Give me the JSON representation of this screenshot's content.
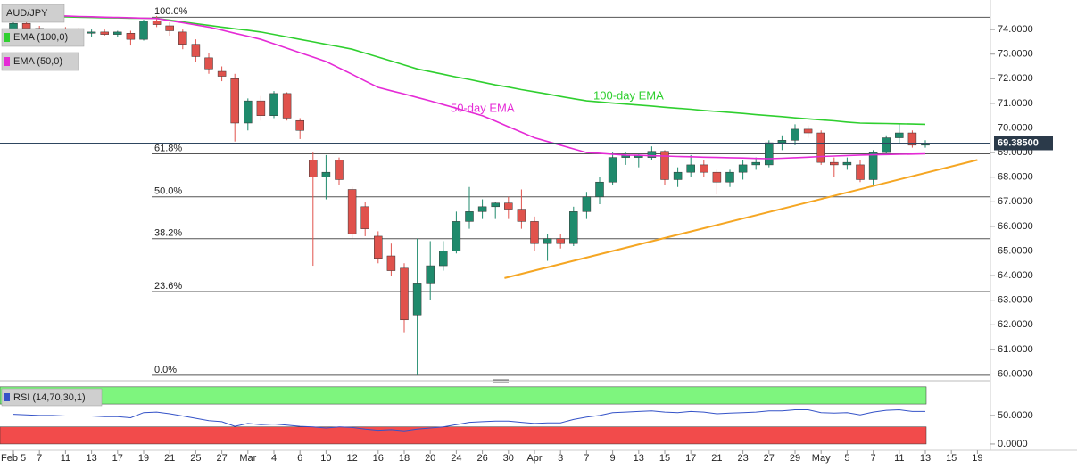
{
  "chart_data": {
    "type": "candlestick",
    "title": "AUD/JPY",
    "categories": [
      "Feb 5",
      null,
      "7",
      null,
      "11",
      null,
      "13",
      null,
      "17",
      null,
      "19",
      null,
      "21",
      null,
      "25",
      null,
      "27",
      null,
      "Mar",
      null,
      "4",
      null,
      "6",
      null,
      "10",
      null,
      "12",
      null,
      "16",
      null,
      "18",
      null,
      "20",
      null,
      "24",
      null,
      "26",
      null,
      "30",
      null,
      "Apr",
      null,
      "3",
      null,
      "7",
      null,
      "9",
      null,
      "13",
      null,
      "15",
      null,
      "17",
      null,
      "21",
      null,
      "23",
      null,
      "27",
      null,
      "29",
      null,
      "May",
      null,
      "5",
      null,
      "7",
      null,
      "11",
      null,
      "13",
      null,
      "15",
      null,
      "19"
    ],
    "open": [
      73.95,
      74.25,
      74.05,
      73.85,
      73.95,
      73.9,
      73.85,
      73.9,
      73.8,
      73.85,
      73.6,
      74.35,
      74.15,
      73.9,
      73.4,
      72.85,
      72.3,
      72.0,
      70.2,
      71.1,
      70.5,
      71.4,
      70.3,
      68.7,
      68.0,
      68.7,
      67.5,
      66.8,
      65.6,
      64.8,
      64.3,
      62.4,
      63.7,
      64.4,
      65.0,
      66.2,
      66.6,
      66.8,
      66.95,
      66.7,
      66.2,
      65.3,
      65.5,
      65.3,
      66.6,
      67.2,
      67.8,
      68.8,
      68.8,
      68.8,
      69.05,
      67.9,
      68.2,
      68.5,
      68.2,
      67.8,
      68.2,
      68.5,
      68.5,
      69.4,
      69.5,
      69.95,
      69.8,
      68.6,
      68.5,
      68.5,
      67.9,
      69.0,
      69.6,
      69.8,
      69.3,
      null,
      null,
      null,
      null
    ],
    "high": [
      74.35,
      74.45,
      74.15,
      74.0,
      74.1,
      74.05,
      74.0,
      74.0,
      73.95,
      73.95,
      74.4,
      74.55,
      74.3,
      74.0,
      73.6,
      73.05,
      72.5,
      72.2,
      71.2,
      71.3,
      71.5,
      71.45,
      70.4,
      69.0,
      68.9,
      68.8,
      67.6,
      67.0,
      65.8,
      65.3,
      64.5,
      65.5,
      65.4,
      65.4,
      66.6,
      67.6,
      67.1,
      67.0,
      67.2,
      67.5,
      66.4,
      65.7,
      65.7,
      66.8,
      67.4,
      68.0,
      69.0,
      69.0,
      68.95,
      69.25,
      69.1,
      68.4,
      68.9,
      68.7,
      68.3,
      68.3,
      68.7,
      68.8,
      69.5,
      69.7,
      70.15,
      70.1,
      69.9,
      68.8,
      68.8,
      68.7,
      69.1,
      69.7,
      70.15,
      69.9,
      69.5,
      null,
      null,
      null,
      null
    ],
    "low": [
      73.85,
      73.95,
      73.75,
      73.7,
      73.8,
      73.75,
      73.7,
      73.75,
      73.7,
      73.35,
      73.55,
      74.1,
      73.75,
      73.2,
      72.7,
      72.2,
      71.9,
      69.45,
      69.9,
      70.3,
      70.4,
      70.3,
      69.55,
      64.4,
      67.1,
      67.7,
      65.5,
      65.6,
      64.5,
      64.0,
      61.7,
      59.95,
      63.0,
      64.2,
      64.9,
      65.9,
      66.3,
      66.3,
      66.3,
      65.9,
      65.0,
      64.6,
      65.1,
      65.2,
      66.3,
      66.9,
      67.7,
      68.5,
      68.4,
      68.7,
      67.7,
      67.6,
      68.0,
      68.0,
      67.3,
      67.6,
      67.9,
      68.3,
      68.4,
      69.1,
      69.3,
      69.6,
      68.5,
      68.0,
      68.3,
      67.8,
      67.7,
      68.9,
      69.4,
      69.2,
      69.2,
      null,
      null,
      null,
      null
    ],
    "close": [
      74.25,
      74.05,
      73.85,
      73.95,
      73.9,
      73.85,
      73.9,
      73.8,
      73.9,
      73.6,
      74.35,
      74.2,
      73.95,
      73.4,
      72.9,
      72.4,
      72.1,
      70.2,
      71.1,
      70.5,
      71.4,
      70.4,
      69.9,
      68.0,
      68.2,
      67.9,
      65.7,
      65.9,
      64.7,
      64.2,
      62.2,
      63.7,
      64.4,
      65.0,
      66.2,
      66.6,
      66.8,
      66.95,
      66.7,
      66.2,
      65.3,
      65.5,
      65.3,
      66.6,
      67.2,
      67.8,
      68.8,
      68.9,
      68.9,
      69.05,
      67.9,
      68.2,
      68.5,
      68.2,
      67.8,
      68.2,
      68.5,
      68.6,
      69.4,
      69.5,
      69.95,
      69.8,
      68.6,
      68.5,
      68.6,
      67.9,
      69.0,
      69.6,
      69.8,
      69.3,
      69.385,
      null,
      null,
      null,
      null
    ],
    "up_color": "#1f8a6c",
    "down_color": "#e0524c",
    "series": [
      {
        "name": "EMA (100,0)",
        "color": "#2fcf2f",
        "values": [
          74.55,
          74.54,
          74.53,
          74.52,
          74.51,
          74.5,
          74.49,
          74.48,
          74.47,
          74.46,
          74.46,
          74.45,
          74.38,
          74.31,
          74.24,
          74.17,
          74.1,
          74.03,
          73.97,
          73.9,
          73.8,
          73.7,
          73.6,
          73.5,
          73.4,
          73.3,
          73.2,
          73.04,
          72.88,
          72.72,
          72.56,
          72.4,
          72.29,
          72.18,
          72.07,
          71.97,
          71.86,
          71.75,
          71.66,
          71.56,
          71.47,
          71.38,
          71.28,
          71.19,
          71.1,
          71.06,
          71.01,
          70.97,
          70.93,
          70.89,
          70.84,
          70.8,
          70.76,
          70.71,
          70.67,
          70.63,
          70.59,
          70.54,
          70.5,
          70.46,
          70.41,
          70.37,
          70.33,
          70.29,
          70.24,
          70.2,
          70.19,
          70.18,
          70.17,
          70.16,
          70.15,
          null,
          null,
          null,
          null
        ]
      },
      {
        "name": "EMA (50,0)",
        "color": "#e52bd6",
        "values": [
          74.6,
          74.59,
          74.57,
          74.56,
          74.55,
          74.53,
          74.52,
          74.5,
          74.49,
          74.48,
          74.46,
          74.45,
          74.36,
          74.28,
          74.19,
          74.1,
          73.98,
          73.85,
          73.73,
          73.6,
          73.42,
          73.24,
          73.06,
          72.88,
          72.7,
          72.44,
          72.18,
          71.91,
          71.65,
          71.51,
          71.38,
          71.24,
          71.1,
          70.95,
          70.8,
          70.65,
          70.5,
          70.28,
          70.05,
          69.83,
          69.6,
          69.45,
          69.3,
          69.15,
          69.0,
          68.97,
          68.93,
          68.9,
          68.89,
          68.87,
          68.86,
          68.84,
          68.83,
          68.81,
          68.8,
          68.79,
          68.78,
          68.76,
          68.75,
          68.77,
          68.79,
          68.81,
          68.84,
          68.86,
          68.88,
          68.9,
          68.91,
          68.92,
          68.93,
          68.94,
          68.95,
          null,
          null,
          null,
          null
        ]
      }
    ],
    "annotations": [
      {
        "text": "100-day EMA",
        "color": "#2fcf2f"
      },
      {
        "text": "50-day EMA",
        "color": "#e52bd6"
      }
    ],
    "fib_levels": [
      {
        "value": 74.5,
        "label": "100.0%"
      },
      {
        "value": 68.95,
        "label": "61.8%"
      },
      {
        "value": 67.2,
        "label": "50.0%"
      },
      {
        "value": 65.5,
        "label": "38.2%"
      },
      {
        "value": 63.35,
        "label": "23.6%"
      },
      {
        "value": 59.95,
        "label": "0.0%"
      }
    ],
    "trendline": {
      "x": [
        37.7,
        74
      ],
      "values": [
        63.9,
        68.7
      ],
      "color": "#f5a623"
    },
    "last_price": {
      "value": 69.385,
      "label": "69.38500"
    },
    "ylim": [
      59.8,
      75.2
    ],
    "yticks": [
      {
        "value": 74,
        "label": "74.0000"
      },
      {
        "value": 73,
        "label": "73.0000"
      },
      {
        "value": 72,
        "label": "72.0000"
      },
      {
        "value": 71,
        "label": "71.0000"
      },
      {
        "value": 70,
        "label": "70.0000"
      },
      {
        "value": 69,
        "label": "69.0000"
      },
      {
        "value": 68,
        "label": "68.0000"
      },
      {
        "value": 67,
        "label": "67.0000"
      },
      {
        "value": 66,
        "label": "66.0000"
      },
      {
        "value": 65,
        "label": "65.0000"
      },
      {
        "value": 64,
        "label": "64.0000"
      },
      {
        "value": 63,
        "label": "63.0000"
      },
      {
        "value": 62,
        "label": "62.0000"
      },
      {
        "value": 61,
        "label": "61.0000"
      },
      {
        "value": 60,
        "label": "60.0000"
      }
    ],
    "rsi": {
      "title": "RSI (14,70,30,1)",
      "color": "#3553c8",
      "values": [
        52,
        51,
        50,
        50,
        49,
        49,
        49,
        48,
        48,
        46,
        55,
        56,
        53,
        49,
        45,
        41,
        39,
        31,
        36,
        34,
        35,
        33,
        31,
        30,
        28,
        30,
        29,
        26,
        24,
        25,
        23,
        26,
        28,
        30,
        34,
        38,
        39,
        40,
        40,
        38,
        36,
        37,
        37,
        43,
        47,
        50,
        55,
        56,
        57,
        58,
        56,
        55,
        57,
        56,
        53,
        54,
        55,
        56,
        58,
        58,
        60,
        60,
        55,
        54,
        55,
        51,
        56,
        59,
        60,
        57,
        57,
        null,
        null,
        null,
        null
      ],
      "overbought": [
        70,
        100
      ],
      "oversold": [
        0,
        30
      ],
      "overbought_color": "#7ef57e",
      "oversold_color": "#f24b4b",
      "ylim": [
        -11,
        106
      ],
      "yticks": [
        {
          "value": 50,
          "label": "50.0000"
        },
        {
          "value": 0,
          "label": "0.0000"
        }
      ]
    }
  }
}
